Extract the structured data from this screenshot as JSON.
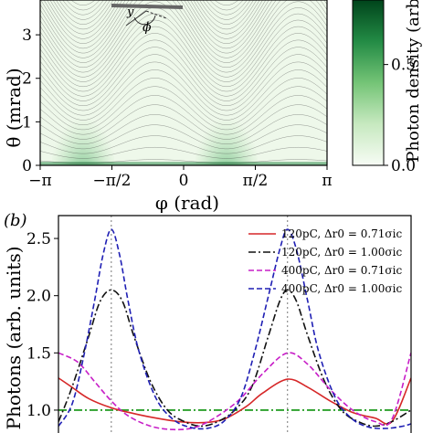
{
  "chart_data": [
    {
      "type": "heatmap",
      "title": "",
      "xlabel": "φ (rad)",
      "ylabel": "θ (mrad)",
      "x_tick_labels": [
        "−π",
        "−π/2",
        "0",
        "π/2",
        "π"
      ],
      "y_tick_labels": [
        "0",
        "1",
        "2",
        "3"
      ],
      "xlim": [
        -3.1416,
        3.1416
      ],
      "ylim": [
        0,
        3.8
      ],
      "x_ticks": [
        -3.1416,
        -1.5708,
        0,
        1.5708,
        3.1416
      ],
      "y_ticks": [
        0,
        1,
        2,
        3
      ],
      "colorbar": {
        "label": "Photon density (arb.",
        "tick_labels": [
          "0.0",
          "0.5"
        ],
        "ticks": [
          0,
          0.5
        ],
        "range": [
          0,
          0.82
        ],
        "colormap": [
          "#f7fcf5",
          "#c7e9c0",
          "#74c476",
          "#238b45",
          "#00441b"
        ]
      },
      "peaks_phi": [
        -2.2,
        0.94
      ],
      "inset_symbols": [
        "y",
        "ϕ"
      ]
    },
    {
      "type": "line",
      "panel_label": "(b)",
      "xlabel": "",
      "ylabel": "Photons (arb. units)",
      "xlim": [
        -3.1416,
        3.1416
      ],
      "ylim": [
        0.8,
        2.7
      ],
      "y_ticks": [
        1.0,
        1.5,
        2.0,
        2.5
      ],
      "y_tick_labels": [
        "1.0",
        "1.5",
        "2.0",
        "2.5"
      ],
      "vlines_x": [
        -2.2,
        0.94
      ],
      "hline_y": 1.0,
      "hline_color": "#2ca02c",
      "series": [
        {
          "name": "120pC, Δr0 = 0.71σic",
          "color": "#d62728",
          "style": "solid",
          "x": [
            -3.14,
            -2.9,
            -2.6,
            -2.2,
            -1.8,
            -1.4,
            -1.0,
            -0.6,
            -0.2,
            0.2,
            0.5,
            0.94,
            1.3,
            1.7,
            2.1,
            2.5,
            2.8,
            3.14
          ],
          "y": [
            1.28,
            1.2,
            1.1,
            1.02,
            0.97,
            0.93,
            0.9,
            0.89,
            0.92,
            1.03,
            1.15,
            1.27,
            1.2,
            1.08,
            0.98,
            0.93,
            0.9,
            1.28
          ]
        },
        {
          "name": "120pC, Δr0 = 1.00σic",
          "color": "#111111",
          "style": "dashdot",
          "x": [
            -3.14,
            -2.9,
            -2.6,
            -2.4,
            -2.2,
            -2.0,
            -1.8,
            -1.5,
            -1.2,
            -0.9,
            -0.6,
            -0.3,
            0,
            0.3,
            0.6,
            0.8,
            0.94,
            1.1,
            1.3,
            1.6,
            1.9,
            2.2,
            2.5,
            2.8,
            3.14
          ],
          "y": [
            0.9,
            1.2,
            1.65,
            1.95,
            2.05,
            1.95,
            1.65,
            1.25,
            1.0,
            0.9,
            0.86,
            0.9,
            1.0,
            1.2,
            1.65,
            1.95,
            2.05,
            1.95,
            1.65,
            1.25,
            1.0,
            0.9,
            0.86,
            0.9,
            1.0
          ]
        },
        {
          "name": "400pC, Δr0 = 0.71σic",
          "color": "#c71ec7",
          "style": "dashed",
          "x": [
            -3.14,
            -2.8,
            -2.5,
            -2.2,
            -1.9,
            -1.5,
            -1.1,
            -0.7,
            -0.3,
            0.1,
            0.5,
            0.94,
            1.3,
            1.7,
            2.1,
            2.5,
            2.8,
            3.14
          ],
          "y": [
            1.5,
            1.42,
            1.25,
            1.08,
            0.95,
            0.86,
            0.83,
            0.85,
            0.95,
            1.1,
            1.32,
            1.5,
            1.4,
            1.18,
            1.0,
            0.9,
            0.92,
            1.5
          ]
        },
        {
          "name": "400pC, Δr0 = 1.00σic",
          "color": "#1f1fb4",
          "style": "dashed",
          "x": [
            -3.14,
            -2.9,
            -2.7,
            -2.5,
            -2.35,
            -2.2,
            -2.05,
            -1.9,
            -1.7,
            -1.4,
            -1.1,
            -0.8,
            -0.5,
            -0.2,
            0.1,
            0.35,
            0.6,
            0.8,
            0.94,
            1.1,
            1.3,
            1.5,
            1.8,
            2.1,
            2.4,
            2.7,
            3.0,
            3.14
          ],
          "y": [
            0.86,
            1.05,
            1.45,
            1.95,
            2.35,
            2.58,
            2.35,
            1.95,
            1.5,
            1.1,
            0.92,
            0.85,
            0.84,
            0.9,
            1.1,
            1.5,
            2.0,
            2.4,
            2.58,
            2.4,
            1.95,
            1.5,
            1.1,
            0.92,
            0.85,
            0.84,
            0.86,
            0.88
          ]
        }
      ]
    }
  ]
}
